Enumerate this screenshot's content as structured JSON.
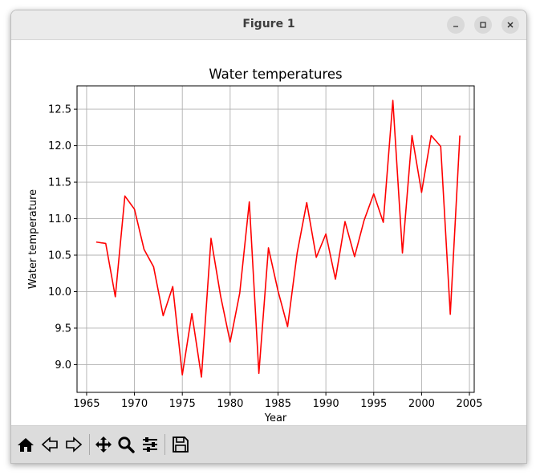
{
  "window": {
    "title": "Figure 1",
    "controls": [
      "minimize",
      "maximize",
      "close"
    ]
  },
  "toolbar": {
    "tools": [
      "home-icon",
      "back-icon",
      "forward-icon",
      "pan-icon",
      "zoom-icon",
      "configure-subplots-icon",
      "save-icon"
    ]
  },
  "colors": {
    "line": "#ff0000",
    "grid": "#b0b0b0"
  },
  "chart_data": {
    "type": "line",
    "title": "Water temperatures",
    "xlabel": "Year",
    "ylabel": "Water temperature",
    "xlim": [
      1964,
      2005.5
    ],
    "ylim": [
      8.62,
      12.82
    ],
    "xticks": [
      1965,
      1970,
      1975,
      1980,
      1985,
      1990,
      1995,
      2000,
      2005
    ],
    "yticks": [
      9.0,
      9.5,
      10.0,
      10.5,
      11.0,
      11.5,
      12.0,
      12.5
    ],
    "grid": true,
    "series": [
      {
        "x": [
          1966,
          1967,
          1968,
          1969,
          1970,
          1971,
          1972,
          1973,
          1974,
          1975,
          1976,
          1977,
          1978,
          1979,
          1980,
          1981,
          1982,
          1983,
          1984,
          1985,
          1986,
          1987,
          1988,
          1989,
          1990,
          1991,
          1992,
          1993,
          1994,
          1995,
          1996,
          1997,
          1998,
          1999,
          2000,
          2001,
          2002,
          2003,
          2004
        ],
        "values": [
          10.68,
          10.66,
          9.93,
          11.31,
          11.13,
          10.58,
          10.34,
          9.67,
          10.07,
          8.86,
          9.7,
          8.83,
          10.73,
          9.94,
          9.31,
          9.98,
          11.23,
          8.88,
          10.6,
          10.01,
          9.52,
          10.53,
          11.22,
          10.47,
          10.79,
          10.17,
          10.96,
          10.48,
          10.98,
          11.34,
          10.95,
          12.62,
          10.53,
          12.14,
          11.36,
          12.14,
          11.99,
          9.69,
          12.14
        ]
      }
    ]
  }
}
